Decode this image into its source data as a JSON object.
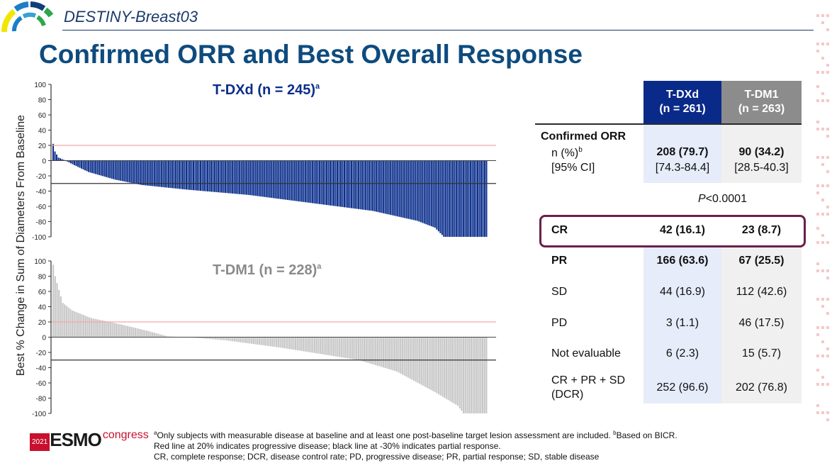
{
  "header": {
    "study": "DESTINY-Breast03",
    "title": "Confirmed ORR and Best Overall Response"
  },
  "chart_data": [
    {
      "type": "bar",
      "title": "T-DXd (n = 245)",
      "title_sup": "a",
      "ylabel": "Best % Change in Sum of Diameters From Baseline",
      "ylim": [
        -100,
        100
      ],
      "yticks": [
        100,
        80,
        60,
        40,
        20,
        0,
        -20,
        -40,
        -60,
        -80,
        -100
      ],
      "reference_lines": [
        {
          "y": 20,
          "color": "#f4a6a6"
        },
        {
          "y": -30,
          "color": "#333333"
        }
      ],
      "bar_color": "#0a2e8c",
      "n_bars": 245,
      "waterfall_knots": [
        [
          0,
          22
        ],
        [
          1,
          12
        ],
        [
          3,
          4
        ],
        [
          7,
          0
        ],
        [
          12,
          -6
        ],
        [
          20,
          -15
        ],
        [
          35,
          -25
        ],
        [
          50,
          -32
        ],
        [
          75,
          -38
        ],
        [
          110,
          -45
        ],
        [
          150,
          -57
        ],
        [
          180,
          -66
        ],
        [
          205,
          -79
        ],
        [
          215,
          -88
        ],
        [
          220,
          -100
        ],
        [
          245,
          -100
        ]
      ]
    },
    {
      "type": "bar",
      "title": "T-DM1 (n = 228)",
      "title_sup": "a",
      "ylabel": "Best % Change in Sum of Diameters From Baseline",
      "ylim": [
        -100,
        100
      ],
      "yticks": [
        100,
        80,
        60,
        40,
        20,
        0,
        -20,
        -40,
        -60,
        -80,
        -100
      ],
      "reference_lines": [
        {
          "y": 20,
          "color": "#f4a6a6"
        },
        {
          "y": -30,
          "color": "#333333"
        }
      ],
      "bar_color": "#c8c8c8",
      "n_bars": 228,
      "waterfall_knots": [
        [
          0,
          95
        ],
        [
          1,
          80
        ],
        [
          3,
          62
        ],
        [
          5,
          45
        ],
        [
          10,
          35
        ],
        [
          20,
          25
        ],
        [
          35,
          17
        ],
        [
          50,
          8
        ],
        [
          60,
          1
        ],
        [
          70,
          0
        ],
        [
          90,
          -4
        ],
        [
          120,
          -14
        ],
        [
          160,
          -30
        ],
        [
          180,
          -45
        ],
        [
          200,
          -72
        ],
        [
          212,
          -90
        ],
        [
          215,
          -100
        ],
        [
          228,
          -100
        ]
      ]
    }
  ],
  "table": {
    "col_tdxd_line1": "T-DXd",
    "col_tdxd_line2": "(n = 261)",
    "col_tdm1_line1": "T-DM1",
    "col_tdm1_line2": "(n = 263)",
    "orr_label": "Confirmed ORR",
    "orr_n_label": "n (%)",
    "orr_n_sup": "b",
    "orr_ci_label": "[95% CI]",
    "orr_tdxd": "208 (79.7)",
    "orr_tdxd_ci": "[74.3-84.4]",
    "orr_tdm1": "90 (34.2)",
    "orr_tdm1_ci": "[28.5-40.3]",
    "p_italic": "P",
    "p_value": "<0.0001",
    "rows": [
      {
        "label": "CR",
        "tdxd": "42 (16.1)",
        "tdm1": "23 (8.7)"
      },
      {
        "label": "PR",
        "tdxd": "166 (63.6)",
        "tdm1": "67 (25.5)"
      },
      {
        "label": "SD",
        "tdxd": "44 (16.9)",
        "tdm1": "112 (42.6)"
      },
      {
        "label": "PD",
        "tdxd": "3 (1.1)",
        "tdm1": "46 (17.5)"
      },
      {
        "label": "Not evaluable",
        "tdxd": "6 (2.3)",
        "tdm1": "15 (5.7)"
      },
      {
        "label_line1": "CR + PR + SD",
        "label_line2": "(DCR)",
        "tdxd": "252 (96.6)",
        "tdm1": "202 (76.8)"
      }
    ]
  },
  "footnotes": {
    "sup_a": "a",
    "line1a": "Only subjects with measurable disease at baseline and at least one post-baseline target lesion assessment are included. ",
    "sup_b": "b",
    "line1b": "Based on BICR.",
    "line2": "Red line at 20% indicates progressive disease; black line at -30% indicates partial response.",
    "line3": "CR, complete response; DCR, disease control rate; PD, progressive disease; PR, partial response; SD, stable disease"
  },
  "congress": {
    "year": "2021",
    "brand": "ESMO",
    "word": "congress"
  },
  "colors": {
    "title_blue": "#0e4b7e",
    "tdxd_header": "#0a2a8a",
    "tdm1_header": "#8c8c8c",
    "tdxd_col_bg": "#e6ecfa",
    "tdm1_col_bg": "#f0f0f0",
    "cr_outline": "#6b1f4f",
    "esmo_red": "#c8102e"
  }
}
